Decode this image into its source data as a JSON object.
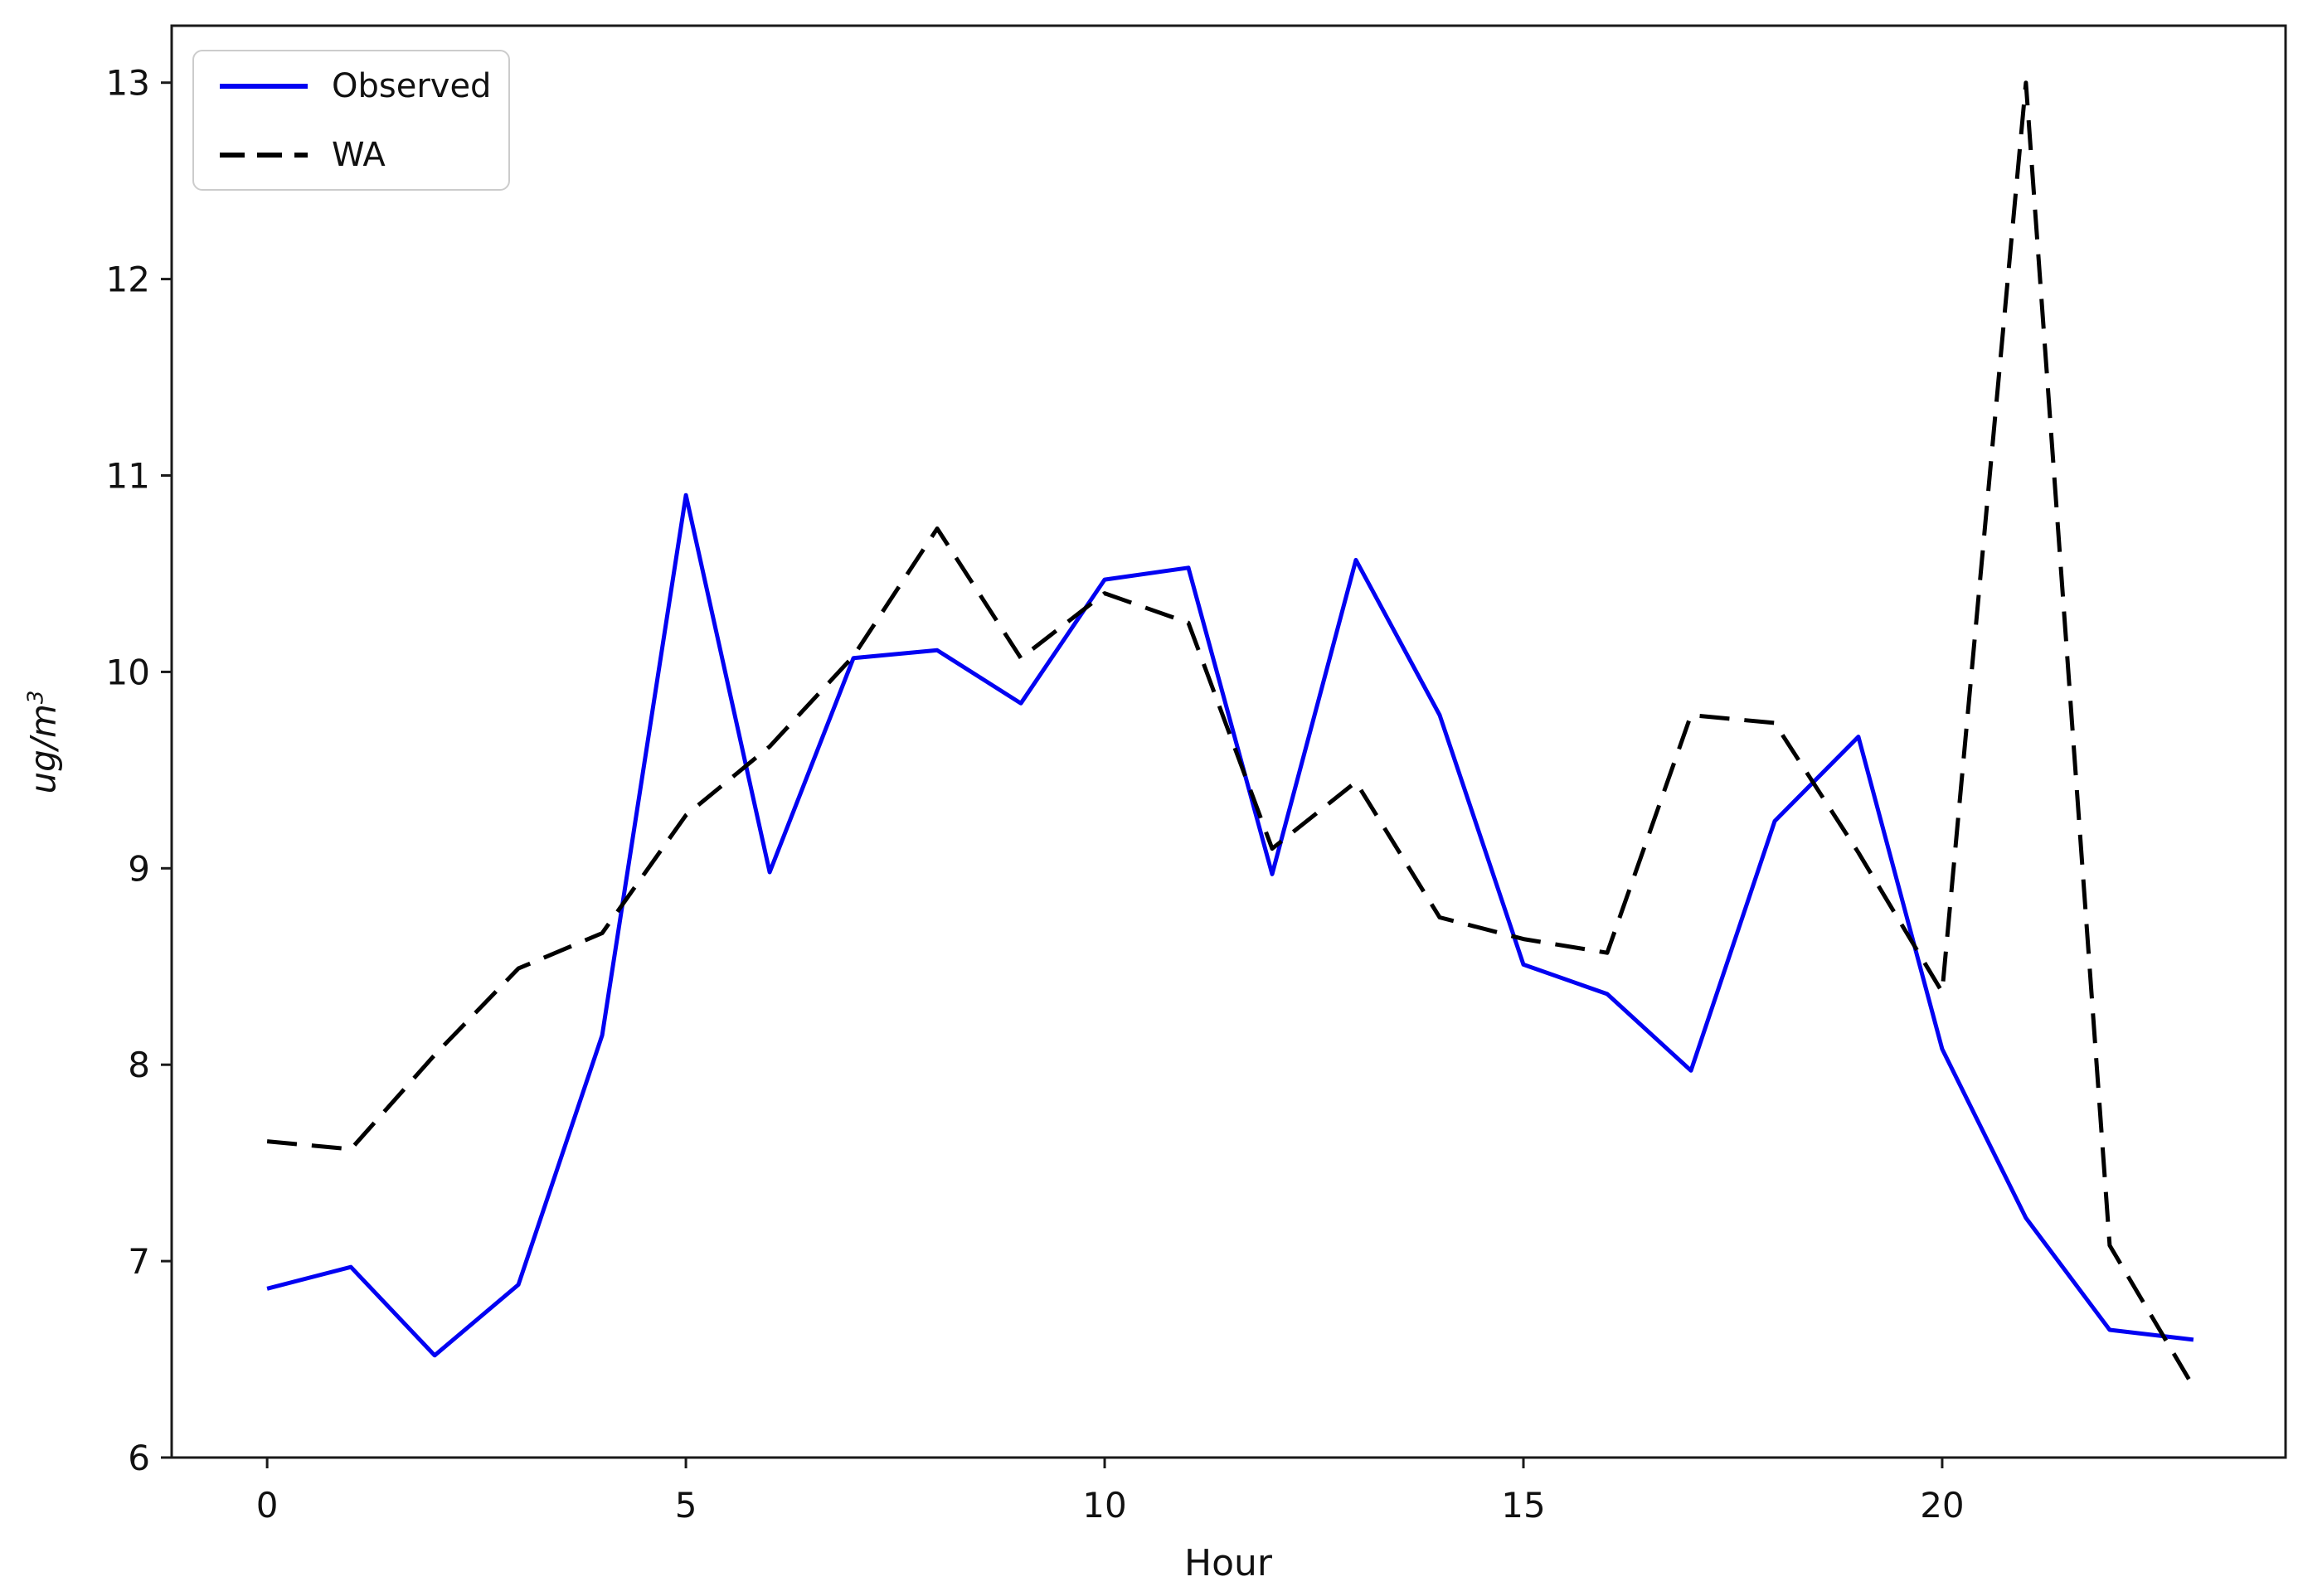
{
  "chart_data": {
    "type": "line",
    "title": "",
    "xlabel": "Hour",
    "ylabel": "ug/m^3",
    "ylabel_base": "ug/m",
    "ylabel_exponent": "3",
    "x": [
      0,
      1,
      2,
      3,
      4,
      5,
      6,
      7,
      8,
      9,
      10,
      11,
      12,
      13,
      14,
      15,
      16,
      17,
      18,
      19,
      20,
      21,
      22,
      23
    ],
    "series": [
      {
        "name": "Observed",
        "color": "#0202f2",
        "linestyle": "solid",
        "linewidth": 5,
        "values": [
          6.86,
          6.97,
          6.52,
          6.88,
          8.15,
          10.9,
          8.98,
          10.07,
          10.11,
          9.84,
          10.47,
          10.53,
          8.97,
          10.57,
          9.78,
          8.51,
          8.36,
          7.97,
          9.24,
          9.67,
          8.08,
          7.22,
          6.65,
          6.6
        ]
      },
      {
        "name": "WA",
        "color": "#000000",
        "linestyle": "dashed",
        "linewidth": 5,
        "values": [
          7.61,
          7.57,
          8.05,
          8.49,
          8.67,
          9.27,
          9.62,
          10.08,
          10.73,
          10.07,
          10.4,
          10.25,
          9.1,
          9.44,
          8.75,
          8.64,
          8.57,
          9.78,
          9.74,
          9.08,
          8.37,
          13.0,
          7.08,
          6.36
        ]
      }
    ],
    "xlim": [
      -1.14,
      24.1
    ],
    "ylim": [
      6.0,
      13.29
    ],
    "xticks": [
      0,
      5,
      10,
      15,
      20
    ],
    "yticks": [
      6,
      7,
      8,
      9,
      10,
      11,
      12,
      13
    ],
    "grid": false,
    "legend_position": "upper-left",
    "background_color": "#ffffff",
    "spine_color": "#1a1a1a"
  }
}
